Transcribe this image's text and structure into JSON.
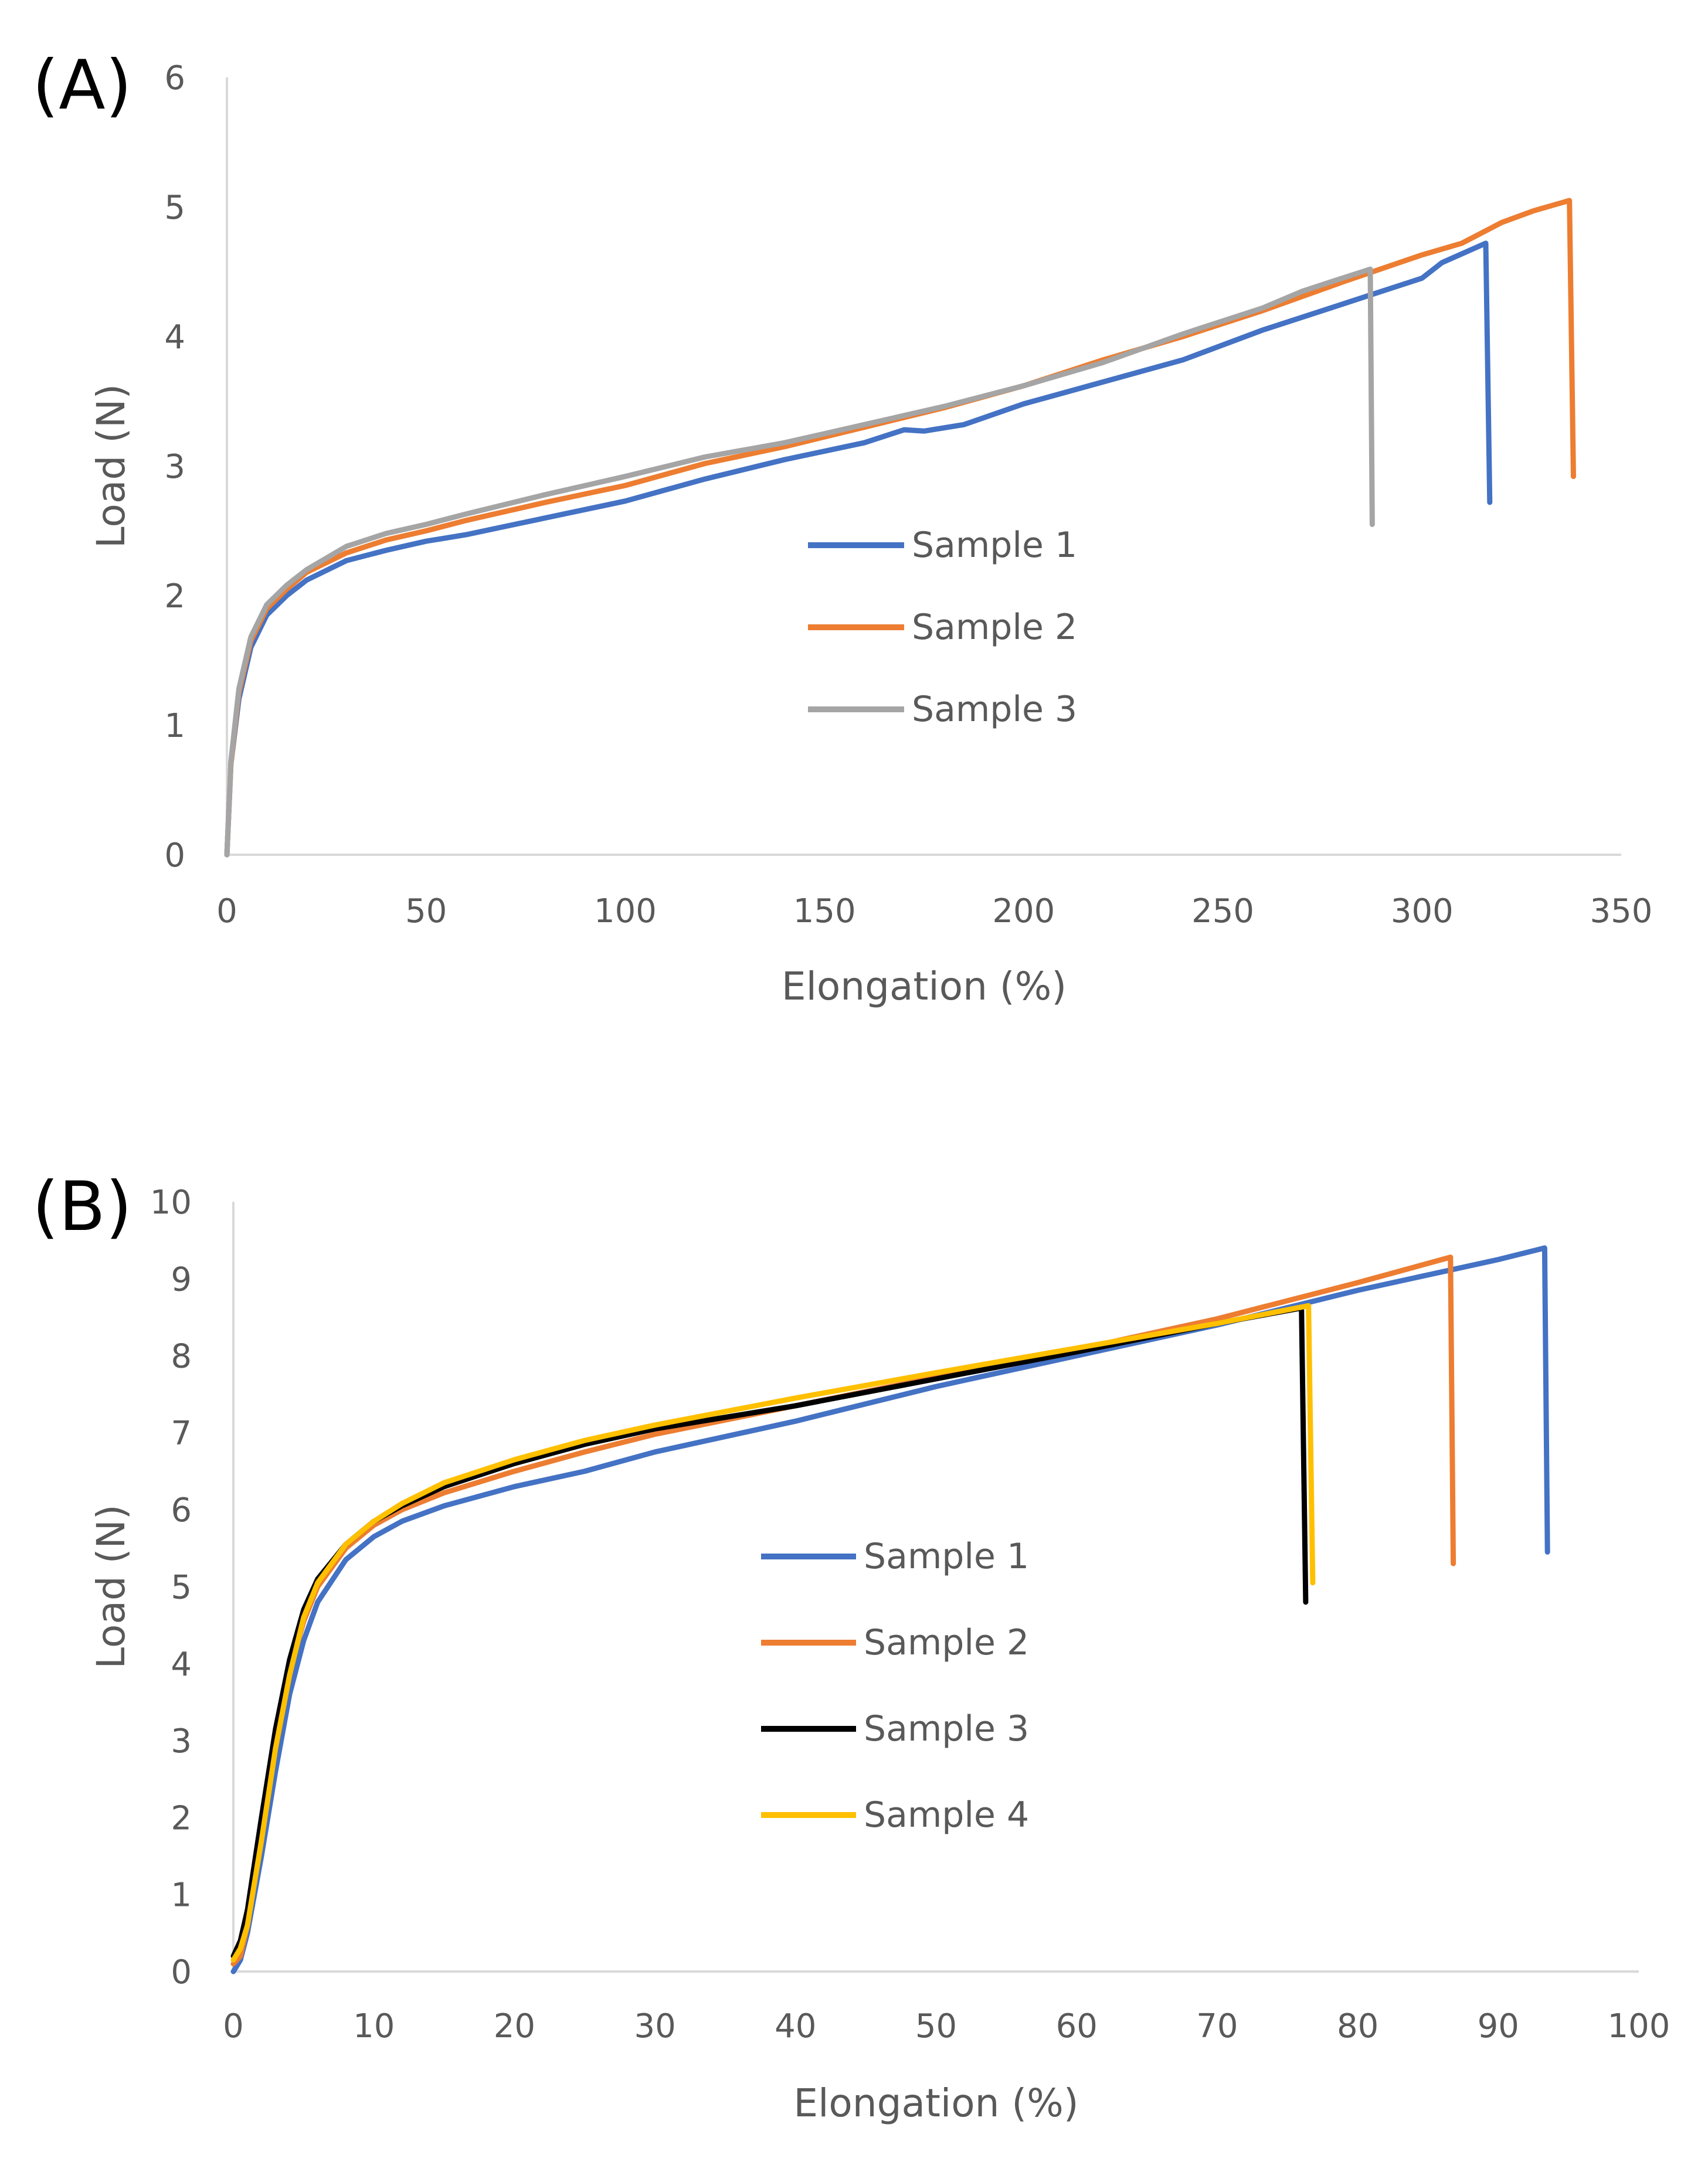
{
  "chart_data": [
    {
      "type": "line",
      "panel_label": "(A)",
      "xlabel": "Elongation (%)",
      "ylabel": "Load (N)",
      "xlim": [
        0,
        350
      ],
      "ylim": [
        0,
        6
      ],
      "xticks": [
        0,
        50,
        100,
        150,
        200,
        250,
        300,
        350
      ],
      "yticks": [
        0,
        1,
        2,
        3,
        4,
        5,
        6
      ],
      "grid": false,
      "legend": "center",
      "series": [
        {
          "name": "Sample 1",
          "color": "#4472C4",
          "points": [
            [
              0,
              0
            ],
            [
              1,
              0.7
            ],
            [
              3,
              1.2
            ],
            [
              6,
              1.6
            ],
            [
              10,
              1.85
            ],
            [
              15,
              2.0
            ],
            [
              20,
              2.12
            ],
            [
              30,
              2.27
            ],
            [
              40,
              2.35
            ],
            [
              50,
              2.42
            ],
            [
              60,
              2.47
            ],
            [
              80,
              2.6
            ],
            [
              100,
              2.73
            ],
            [
              120,
              2.9
            ],
            [
              140,
              3.05
            ],
            [
              160,
              3.18
            ],
            [
              170,
              3.28
            ],
            [
              175,
              3.27
            ],
            [
              185,
              3.32
            ],
            [
              200,
              3.48
            ],
            [
              220,
              3.65
            ],
            [
              240,
              3.82
            ],
            [
              260,
              4.05
            ],
            [
              280,
              4.25
            ],
            [
              290,
              4.35
            ],
            [
              300,
              4.45
            ],
            [
              305,
              4.57
            ],
            [
              316,
              4.72
            ],
            [
              317,
              2.72
            ]
          ]
        },
        {
          "name": "Sample 2",
          "color": "#ED7D31",
          "points": [
            [
              0,
              0
            ],
            [
              1,
              0.7
            ],
            [
              3,
              1.25
            ],
            [
              6,
              1.65
            ],
            [
              10,
              1.9
            ],
            [
              15,
              2.05
            ],
            [
              20,
              2.18
            ],
            [
              30,
              2.33
            ],
            [
              40,
              2.43
            ],
            [
              50,
              2.5
            ],
            [
              60,
              2.58
            ],
            [
              80,
              2.72
            ],
            [
              100,
              2.85
            ],
            [
              120,
              3.02
            ],
            [
              140,
              3.15
            ],
            [
              160,
              3.3
            ],
            [
              180,
              3.45
            ],
            [
              200,
              3.62
            ],
            [
              220,
              3.82
            ],
            [
              240,
              4.0
            ],
            [
              260,
              4.2
            ],
            [
              280,
              4.42
            ],
            [
              300,
              4.63
            ],
            [
              310,
              4.72
            ],
            [
              320,
              4.88
            ],
            [
              328,
              4.97
            ],
            [
              337,
              5.05
            ],
            [
              338,
              2.92
            ]
          ]
        },
        {
          "name": "Sample 3",
          "color": "#A5A5A5",
          "points": [
            [
              0,
              0
            ],
            [
              1,
              0.72
            ],
            [
              3,
              1.28
            ],
            [
              6,
              1.68
            ],
            [
              10,
              1.93
            ],
            [
              15,
              2.08
            ],
            [
              20,
              2.2
            ],
            [
              30,
              2.38
            ],
            [
              40,
              2.48
            ],
            [
              50,
              2.55
            ],
            [
              60,
              2.63
            ],
            [
              80,
              2.78
            ],
            [
              100,
              2.92
            ],
            [
              120,
              3.07
            ],
            [
              140,
              3.18
            ],
            [
              160,
              3.32
            ],
            [
              180,
              3.46
            ],
            [
              200,
              3.62
            ],
            [
              220,
              3.8
            ],
            [
              240,
              4.02
            ],
            [
              260,
              4.22
            ],
            [
              270,
              4.35
            ],
            [
              280,
              4.45
            ],
            [
              287,
              4.52
            ],
            [
              287.5,
              2.55
            ]
          ]
        }
      ]
    },
    {
      "type": "line",
      "panel_label": "(B)",
      "xlabel": "Elongation (%)",
      "ylabel": "Load (N)",
      "xlim": [
        0,
        100
      ],
      "ylim": [
        0,
        10
      ],
      "xticks": [
        0,
        10,
        20,
        30,
        40,
        50,
        60,
        70,
        80,
        90,
        100
      ],
      "yticks": [
        0,
        1,
        2,
        3,
        4,
        5,
        6,
        7,
        8,
        9,
        10
      ],
      "grid": false,
      "legend": "center",
      "series": [
        {
          "name": "Sample  1",
          "color": "#4472C4",
          "points": [
            [
              0,
              0
            ],
            [
              0.5,
              0.15
            ],
            [
              1,
              0.5
            ],
            [
              2,
              1.5
            ],
            [
              3,
              2.6
            ],
            [
              4,
              3.6
            ],
            [
              5,
              4.3
            ],
            [
              6,
              4.8
            ],
            [
              8,
              5.35
            ],
            [
              10,
              5.65
            ],
            [
              12,
              5.85
            ],
            [
              15,
              6.05
            ],
            [
              20,
              6.3
            ],
            [
              25,
              6.5
            ],
            [
              30,
              6.75
            ],
            [
              40,
              7.15
            ],
            [
              50,
              7.6
            ],
            [
              60,
              8.0
            ],
            [
              70,
              8.4
            ],
            [
              80,
              8.85
            ],
            [
              90,
              9.25
            ],
            [
              93.3,
              9.4
            ],
            [
              93.5,
              5.45
            ]
          ]
        },
        {
          "name": "Sample 2",
          "color": "#ED7D31",
          "points": [
            [
              0,
              0.1
            ],
            [
              0.5,
              0.2
            ],
            [
              1,
              0.6
            ],
            [
              2,
              1.8
            ],
            [
              3,
              3.0
            ],
            [
              4,
              3.9
            ],
            [
              5,
              4.55
            ],
            [
              6,
              5.0
            ],
            [
              8,
              5.5
            ],
            [
              10,
              5.8
            ],
            [
              12,
              6.0
            ],
            [
              15,
              6.22
            ],
            [
              20,
              6.5
            ],
            [
              25,
              6.75
            ],
            [
              30,
              6.98
            ],
            [
              40,
              7.35
            ],
            [
              50,
              7.72
            ],
            [
              60,
              8.08
            ],
            [
              70,
              8.48
            ],
            [
              80,
              8.95
            ],
            [
              86.6,
              9.28
            ],
            [
              86.8,
              5.3
            ]
          ]
        },
        {
          "name": "Sample 3",
          "color": "#000000",
          "points": [
            [
              0,
              0.2
            ],
            [
              0.5,
              0.4
            ],
            [
              1,
              0.8
            ],
            [
              2,
              2.0
            ],
            [
              3,
              3.15
            ],
            [
              4,
              4.05
            ],
            [
              5,
              4.7
            ],
            [
              6,
              5.1
            ],
            [
              8,
              5.55
            ],
            [
              10,
              5.85
            ],
            [
              12,
              6.05
            ],
            [
              15,
              6.3
            ],
            [
              20,
              6.6
            ],
            [
              25,
              6.85
            ],
            [
              30,
              7.05
            ],
            [
              40,
              7.35
            ],
            [
              50,
              7.7
            ],
            [
              60,
              8.05
            ],
            [
              70,
              8.42
            ],
            [
              76,
              8.62
            ],
            [
              76.3,
              4.8
            ]
          ]
        },
        {
          "name": "Sample 4",
          "color": "#FFC000",
          "points": [
            [
              0,
              0.15
            ],
            [
              0.5,
              0.3
            ],
            [
              1,
              0.6
            ],
            [
              2,
              1.7
            ],
            [
              3,
              2.9
            ],
            [
              4,
              3.85
            ],
            [
              5,
              4.6
            ],
            [
              6,
              5.05
            ],
            [
              8,
              5.55
            ],
            [
              10,
              5.85
            ],
            [
              12,
              6.08
            ],
            [
              15,
              6.35
            ],
            [
              20,
              6.65
            ],
            [
              25,
              6.9
            ],
            [
              30,
              7.1
            ],
            [
              40,
              7.45
            ],
            [
              50,
              7.78
            ],
            [
              60,
              8.1
            ],
            [
              70,
              8.42
            ],
            [
              76.5,
              8.65
            ],
            [
              76.8,
              5.05
            ]
          ]
        }
      ]
    }
  ]
}
